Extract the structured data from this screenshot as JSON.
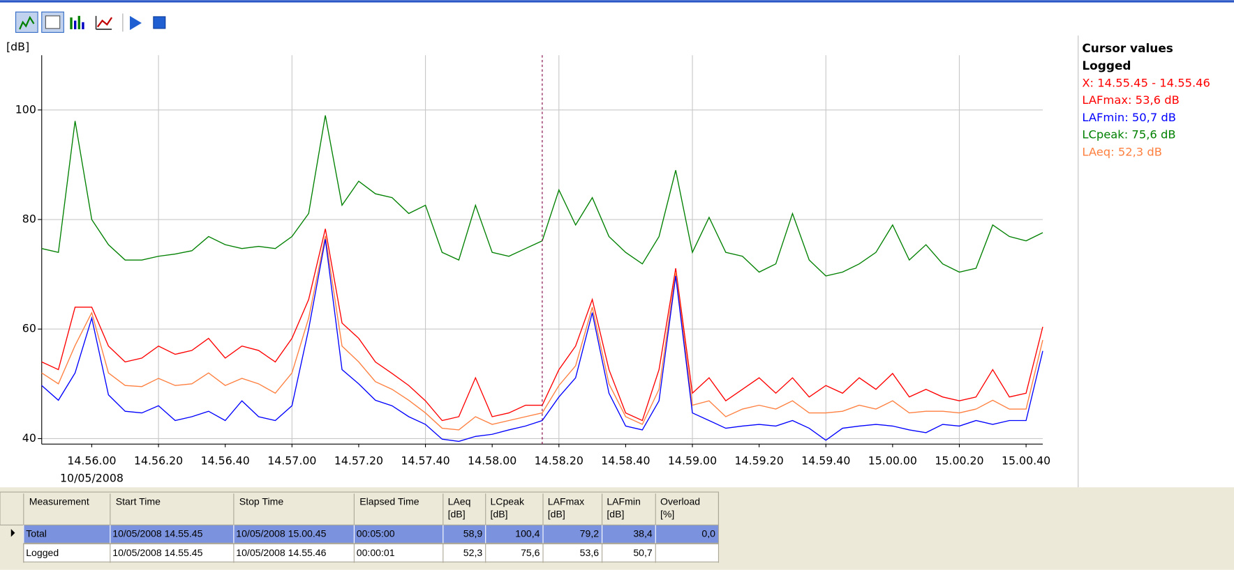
{
  "chart_data": {
    "type": "line",
    "ylabel": "[dB]",
    "date_label": "10/05/2008",
    "x": [
      "14.55.45",
      "14.55.50",
      "14.55.55",
      "14.56.00",
      "14.56.05",
      "14.56.10",
      "14.56.15",
      "14.56.20",
      "14.56.25",
      "14.56.30",
      "14.56.35",
      "14.56.40",
      "14.56.45",
      "14.56.50",
      "14.56.55",
      "14.57.00",
      "14.57.05",
      "14.57.10",
      "14.57.15",
      "14.57.20",
      "14.57.25",
      "14.57.30",
      "14.57.35",
      "14.57.40",
      "14.57.45",
      "14.57.50",
      "14.57.55",
      "14.58.00",
      "14.58.05",
      "14.58.10",
      "14.58.15",
      "14.58.20",
      "14.58.25",
      "14.58.30",
      "14.58.35",
      "14.58.40",
      "14.58.45",
      "14.58.50",
      "14.58.55",
      "14.59.00",
      "14.59.05",
      "14.59.10",
      "14.59.15",
      "14.59.20",
      "14.59.25",
      "14.59.30",
      "14.59.35",
      "14.59.40",
      "14.59.45",
      "14.59.50",
      "14.59.55",
      "15.00.00",
      "15.00.05",
      "15.00.10",
      "15.00.15",
      "15.00.20",
      "15.00.25",
      "15.00.30",
      "15.00.35",
      "15.00.40",
      "15.00.45"
    ],
    "series": [
      {
        "name": "LAeq",
        "color": "#ff7f3f",
        "values": [
          52,
          50,
          57,
          63,
          52,
          49.7,
          49.5,
          51,
          49.7,
          50,
          52,
          49.7,
          51,
          50,
          48.3,
          52,
          62,
          77,
          56.9,
          54,
          50.4,
          49,
          47,
          44.7,
          41.9,
          41.6,
          44,
          42.6,
          43.3,
          44,
          44.7,
          49.7,
          53.3,
          64,
          50,
          44,
          42.6,
          49,
          70.4,
          46.1,
          46.9,
          44,
          45.4,
          46.1,
          45.4,
          46.9,
          44.7,
          44.7,
          45,
          46.1,
          45.4,
          46.9,
          44.7,
          45,
          45,
          44.7,
          45.4,
          47,
          45.4,
          45.4,
          58
        ]
      },
      {
        "name": "LCpeak",
        "color": "#008000",
        "values": [
          74.7,
          74,
          98,
          80,
          75.4,
          72.6,
          72.6,
          73.3,
          73.7,
          74.3,
          76.9,
          75.4,
          74.7,
          75.1,
          74.7,
          76.9,
          81.1,
          99,
          82.6,
          87,
          84.7,
          84,
          81.1,
          82.6,
          74,
          72.6,
          82.6,
          74,
          73.3,
          74.7,
          76.1,
          85.4,
          79,
          84,
          76.9,
          74,
          71.9,
          76.9,
          89,
          74,
          80.4,
          74,
          73.3,
          70.4,
          71.9,
          81.1,
          72.6,
          69.7,
          70.4,
          71.9,
          74,
          79,
          72.6,
          75.4,
          71.9,
          70.4,
          71.1,
          79,
          76.9,
          76.1,
          77.6
        ]
      },
      {
        "name": "LAFmax",
        "color": "#ff0000",
        "values": [
          54,
          52.6,
          64,
          64,
          56.9,
          54,
          54.7,
          56.9,
          55.4,
          56.1,
          58.3,
          54.7,
          56.9,
          56.1,
          54,
          58.3,
          65.4,
          78.3,
          61.1,
          58.3,
          54,
          51.9,
          49.7,
          46.9,
          43.3,
          44,
          51.1,
          44,
          44.7,
          46.1,
          46.1,
          52.6,
          56.9,
          65.4,
          52.6,
          44.7,
          43.3,
          52.6,
          71.1,
          48.3,
          51.1,
          46.9,
          49,
          51.1,
          48.3,
          51.1,
          47.6,
          49.7,
          48.3,
          51.1,
          49,
          51.9,
          47.6,
          49,
          47.6,
          46.9,
          47.6,
          52.6,
          47.6,
          48.3,
          60.4
        ]
      },
      {
        "name": "LAFmin",
        "color": "#0000ff",
        "values": [
          49.7,
          47,
          52,
          62,
          48,
          45,
          44.7,
          46,
          43.3,
          44,
          45,
          43.3,
          46.9,
          44,
          43.3,
          46,
          60,
          76.4,
          52.6,
          50,
          47,
          46,
          44,
          42.6,
          39.9,
          39.5,
          40.4,
          40.8,
          41.6,
          42.3,
          43.3,
          47.6,
          51.1,
          63,
          48.3,
          42.3,
          41.6,
          46.9,
          69.7,
          44.7,
          43.3,
          41.9,
          42.3,
          42.6,
          42.3,
          43.3,
          41.9,
          39.7,
          41.9,
          42.3,
          42.6,
          42.3,
          41.6,
          41.1,
          42.6,
          42.3,
          43.3,
          42.6,
          43.3,
          43.3,
          56
        ]
      }
    ],
    "xlim": [
      "14.55.45",
      "15.00.45"
    ],
    "xticks": [
      "14.56.00",
      "14.56.20",
      "14.56.40",
      "14.57.00",
      "14.57.20",
      "14.57.40",
      "14.58.00",
      "14.58.20",
      "14.58.40",
      "14.59.00",
      "14.59.20",
      "14.59.40",
      "15.00.00",
      "15.00.20",
      "15.00.40"
    ],
    "ylim": [
      39,
      110
    ],
    "yticks": [
      40,
      60,
      80,
      100
    ],
    "grid": true,
    "cursor_x": "14.58.15"
  },
  "cursor_panel": {
    "title": "Cursor values",
    "subtitle": "Logged",
    "lines": [
      {
        "text": "X: 14.55.45 - 14.55.46",
        "color": "#ff0000"
      },
      {
        "text": "LAFmax: 53,6 dB",
        "color": "#ff0000"
      },
      {
        "text": "LAFmin: 50,7 dB",
        "color": "#0000ff"
      },
      {
        "text": "LCpeak: 75,6 dB",
        "color": "#008000"
      },
      {
        "text": "LAeq: 52,3 dB",
        "color": "#ff7f3f"
      }
    ]
  },
  "table": {
    "columns": [
      "Measurement",
      "Start Time",
      "Stop Time",
      "Elapsed Time"
    ],
    "unit": "[dB]",
    "overload": {
      "title": "Overload",
      "unit": "[%]"
    },
    "rows": [
      [
        "Total",
        "10/05/2008 14.55.45",
        "10/05/2008 15.00.45",
        "00:05:00",
        "58,9",
        "100,4",
        "79,2",
        "38,4",
        "0,0"
      ],
      [
        "Logged",
        "10/05/2008 14.55.45",
        "10/05/2008 14.55.46",
        "00:00:01",
        "52,3",
        "75,6",
        "53,6",
        "50,7"
      ]
    ]
  }
}
